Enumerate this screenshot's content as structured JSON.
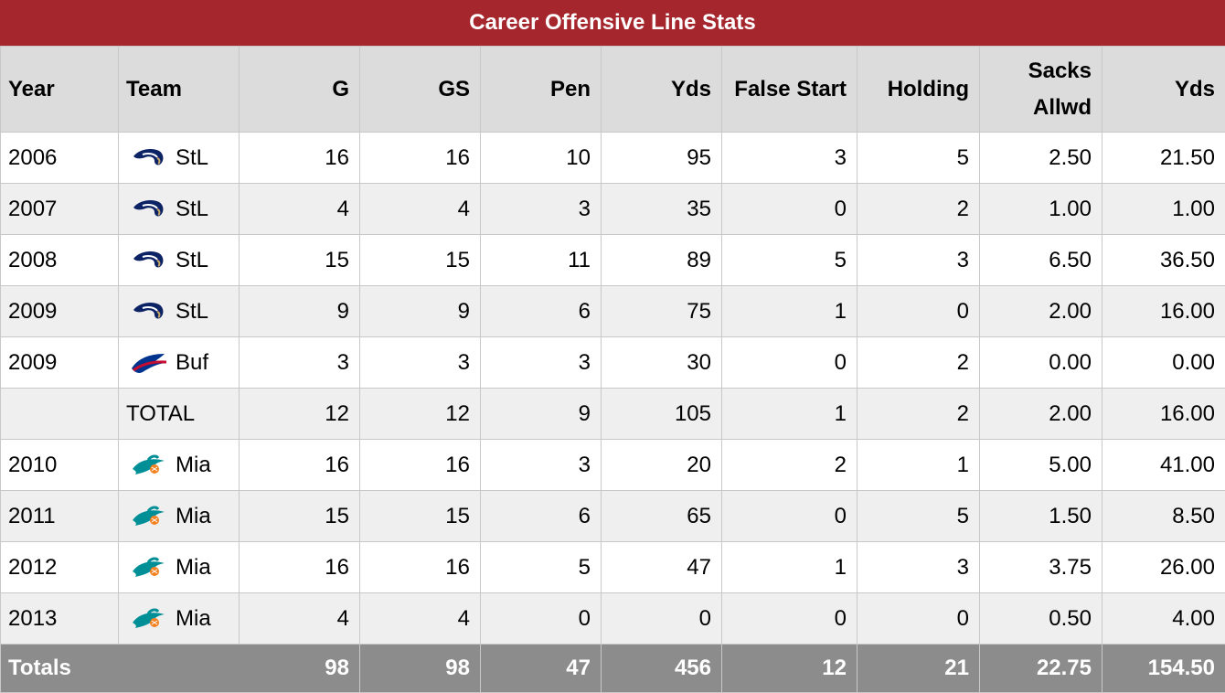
{
  "title": "Career Offensive Line Stats",
  "headers": {
    "year": "Year",
    "team": "Team",
    "g": "G",
    "gs": "GS",
    "pen": "Pen",
    "yds": "Yds",
    "false_start": "False Start",
    "holding": "Holding",
    "sacks_line1": "Sacks",
    "sacks_line2": "Allwd",
    "sack_yds": "Yds"
  },
  "rows": [
    {
      "year": "2006",
      "team": "StL",
      "logo": "rams-logo-icon",
      "g": "16",
      "gs": "16",
      "pen": "10",
      "yds": "95",
      "false_start": "3",
      "holding": "5",
      "sacks": "2.50",
      "sack_yds": "21.50"
    },
    {
      "year": "2007",
      "team": "StL",
      "logo": "rams-logo-icon",
      "g": "4",
      "gs": "4",
      "pen": "3",
      "yds": "35",
      "false_start": "0",
      "holding": "2",
      "sacks": "1.00",
      "sack_yds": "1.00"
    },
    {
      "year": "2008",
      "team": "StL",
      "logo": "rams-logo-icon",
      "g": "15",
      "gs": "15",
      "pen": "11",
      "yds": "89",
      "false_start": "5",
      "holding": "3",
      "sacks": "6.50",
      "sack_yds": "36.50"
    },
    {
      "year": "2009",
      "team": "StL",
      "logo": "rams-logo-icon",
      "g": "9",
      "gs": "9",
      "pen": "6",
      "yds": "75",
      "false_start": "1",
      "holding": "0",
      "sacks": "2.00",
      "sack_yds": "16.00"
    },
    {
      "year": "2009",
      "team": "Buf",
      "logo": "bills-logo-icon",
      "g": "3",
      "gs": "3",
      "pen": "3",
      "yds": "30",
      "false_start": "0",
      "holding": "2",
      "sacks": "0.00",
      "sack_yds": "0.00"
    },
    {
      "year": "",
      "team": "TOTAL",
      "logo": "",
      "g": "12",
      "gs": "12",
      "pen": "9",
      "yds": "105",
      "false_start": "1",
      "holding": "2",
      "sacks": "2.00",
      "sack_yds": "16.00"
    },
    {
      "year": "2010",
      "team": "Mia",
      "logo": "dolphins-logo-icon",
      "g": "16",
      "gs": "16",
      "pen": "3",
      "yds": "20",
      "false_start": "2",
      "holding": "1",
      "sacks": "5.00",
      "sack_yds": "41.00"
    },
    {
      "year": "2011",
      "team": "Mia",
      "logo": "dolphins-logo-icon",
      "g": "15",
      "gs": "15",
      "pen": "6",
      "yds": "65",
      "false_start": "0",
      "holding": "5",
      "sacks": "1.50",
      "sack_yds": "8.50"
    },
    {
      "year": "2012",
      "team": "Mia",
      "logo": "dolphins-logo-icon",
      "g": "16",
      "gs": "16",
      "pen": "5",
      "yds": "47",
      "false_start": "1",
      "holding": "3",
      "sacks": "3.75",
      "sack_yds": "26.00"
    },
    {
      "year": "2013",
      "team": "Mia",
      "logo": "dolphins-logo-icon",
      "g": "4",
      "gs": "4",
      "pen": "0",
      "yds": "0",
      "false_start": "0",
      "holding": "0",
      "sacks": "0.50",
      "sack_yds": "4.00"
    }
  ],
  "totals": {
    "label": "Totals",
    "g": "98",
    "gs": "98",
    "pen": "47",
    "yds": "456",
    "false_start": "12",
    "holding": "21",
    "sacks": "22.75",
    "sack_yds": "154.50"
  },
  "colors": {
    "title_bg": "#a6262d",
    "header_bg": "#dcdcdc",
    "footer_bg": "#8c8c8c",
    "rams_navy": "#0b2265",
    "bills_blue": "#00338d",
    "bills_red": "#c60c30",
    "dolphins_aqua": "#008e97",
    "dolphins_orange": "#f58220"
  }
}
